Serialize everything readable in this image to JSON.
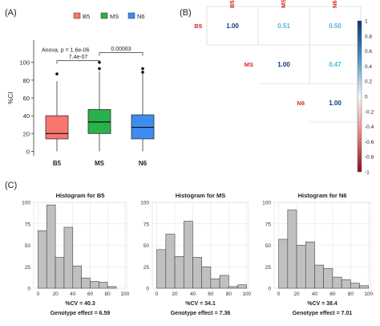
{
  "panel_labels": [
    "(A)",
    "(B)",
    "(C)"
  ],
  "chart_data": [
    {
      "type": "box",
      "panel": "(A)",
      "legend": {
        "position": "top",
        "entries": [
          {
            "label": "B5",
            "color": "#f8766d"
          },
          {
            "label": "MS",
            "color": "#29b24a"
          },
          {
            "label": "N6",
            "color": "#3d8cf0"
          }
        ]
      },
      "ylabel": "%CI",
      "ylim": [
        -5,
        125
      ],
      "yticks": [
        0,
        20,
        40,
        60,
        80,
        100
      ],
      "categories": [
        "B5",
        "MS",
        "N6"
      ],
      "boxes": [
        {
          "name": "B5",
          "q1": 14,
          "median": 20,
          "q3": 40,
          "whisker_low": 0,
          "whisker_high": 79,
          "outliers": [
            87
          ],
          "color": "#f8766d"
        },
        {
          "name": "MS",
          "q1": 20,
          "median": 33,
          "q3": 47,
          "whisker_low": 0,
          "whisker_high": 90,
          "outliers": [
            93,
            100
          ],
          "color": "#29b24a"
        },
        {
          "name": "N6",
          "q1": 14,
          "median": 27,
          "q3": 41,
          "whisker_low": 0,
          "whisker_high": 88,
          "outliers": [
            89,
            93
          ],
          "color": "#3d8cf0"
        }
      ],
      "annotations": [
        {
          "text": "Anova, p = 1.6e-06",
          "y": 112
        },
        {
          "text": "7.4e-07",
          "from": "B5",
          "to": "MS",
          "y": 102
        },
        {
          "text": "0.00063",
          "from": "MS",
          "to": "N6",
          "y": 111
        }
      ]
    },
    {
      "type": "heatmap",
      "panel": "(B)",
      "variables": [
        "B5",
        "MS",
        "N6"
      ],
      "cells": [
        {
          "row": "B5",
          "col": "B5",
          "value": 1.0,
          "label": "1.00"
        },
        {
          "row": "B5",
          "col": "MS",
          "value": 0.51,
          "label": "0.51"
        },
        {
          "row": "B5",
          "col": "N6",
          "value": 0.5,
          "label": "0.50"
        },
        {
          "row": "MS",
          "col": "MS",
          "value": 1.0,
          "label": "1.00"
        },
        {
          "row": "MS",
          "col": "N6",
          "value": 0.47,
          "label": "0.47"
        },
        {
          "row": "N6",
          "col": "N6",
          "value": 1.0,
          "label": "1.00"
        }
      ],
      "colorbar": {
        "min": -1,
        "max": 1,
        "ticks": [
          "1",
          "0.8",
          "0.6",
          "0.4",
          "0.2",
          "0",
          "-0.2",
          "-0.4",
          "-0.6",
          "-0.8",
          "-1"
        ]
      }
    },
    {
      "type": "bar",
      "subtype": "histogram",
      "panel": "(C)",
      "title": "Histogram for B5",
      "bin_edges": [
        0,
        10,
        20,
        30,
        40,
        50,
        60,
        70,
        80,
        90,
        100
      ],
      "values": [
        67,
        97,
        36,
        71,
        26,
        12,
        8,
        7,
        2,
        0
      ],
      "xlim": [
        -5,
        102
      ],
      "ylim": [
        0,
        100
      ],
      "xticks": [
        0,
        20,
        40,
        60,
        80,
        100
      ],
      "yticks": [
        0,
        25,
        50,
        75,
        100
      ],
      "grid": true,
      "stats": [
        "%CV = 40.3",
        "Genotype effect = 6.59"
      ]
    },
    {
      "type": "bar",
      "subtype": "histogram",
      "panel": "(C)",
      "title": "Histogram for MS",
      "bin_edges": [
        0,
        10,
        20,
        30,
        40,
        50,
        60,
        70,
        80,
        90,
        100
      ],
      "values": [
        45,
        63,
        37,
        78,
        36,
        25,
        11,
        15,
        2,
        4
      ],
      "xlim": [
        -5,
        102
      ],
      "ylim": [
        0,
        100
      ],
      "xticks": [
        0,
        20,
        40,
        60,
        80,
        100
      ],
      "yticks": [
        0,
        25,
        50,
        75,
        100
      ],
      "grid": true,
      "stats": [
        "%CV = 34.1",
        "Genotype effect = 7.36"
      ]
    },
    {
      "type": "bar",
      "subtype": "histogram",
      "panel": "(C)",
      "title": "Histogram for N6",
      "bin_edges": [
        0,
        10,
        20,
        30,
        40,
        50,
        60,
        70,
        80,
        90,
        100
      ],
      "values": [
        57,
        91,
        50,
        54,
        27,
        23,
        13,
        10,
        6,
        3
      ],
      "xlim": [
        -5,
        102
      ],
      "ylim": [
        0,
        100
      ],
      "xticks": [
        0,
        20,
        40,
        60,
        80,
        100
      ],
      "yticks": [
        0,
        25,
        50,
        75,
        100
      ],
      "grid": true,
      "stats": [
        "%CV = 38.4",
        "Genotype effect = 7.01"
      ]
    }
  ]
}
